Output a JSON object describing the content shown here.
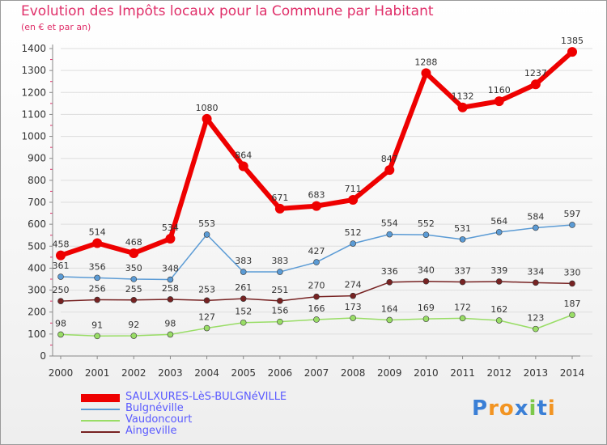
{
  "chart_data": {
    "type": "line",
    "title": "Evolution des Impôts locaux pour la Commune par Habitant",
    "subtitle": "(en € et par an)",
    "xlabel": "",
    "ylabel": "",
    "x": [
      "2000",
      "2001",
      "2002",
      "2003",
      "2004",
      "2005",
      "2006",
      "2007",
      "2008",
      "2009",
      "2010",
      "2011",
      "2012",
      "2013",
      "2014"
    ],
    "ylim": [
      0,
      1400
    ],
    "yticks": [
      0,
      100,
      200,
      300,
      400,
      500,
      600,
      700,
      800,
      900,
      1000,
      1100,
      1200,
      1300,
      1400
    ],
    "grid": true,
    "legend_position": "bottom-left",
    "series": [
      {
        "name": "SAULXURES-LèS-BULGNéVILLE",
        "color": "#ee0000",
        "values": [
          458,
          514,
          468,
          534,
          1080,
          864,
          671,
          683,
          711,
          847,
          1288,
          1132,
          1160,
          1237,
          1385
        ]
      },
      {
        "name": "Bulgnéville",
        "color": "#5b9bd5",
        "values": [
          361,
          356,
          350,
          348,
          553,
          383,
          383,
          427,
          512,
          554,
          552,
          531,
          564,
          584,
          597
        ]
      },
      {
        "name": "Vaudoncourt",
        "color": "#99dd66",
        "values": [
          98,
          91,
          92,
          98,
          127,
          152,
          156,
          166,
          173,
          164,
          169,
          172,
          162,
          123,
          187
        ]
      },
      {
        "name": "Aingeville",
        "color": "#772222",
        "values": [
          250,
          256,
          255,
          258,
          253,
          261,
          251,
          270,
          274,
          336,
          340,
          337,
          339,
          334,
          330
        ]
      }
    ]
  },
  "brand": {
    "letters": [
      "P",
      "r",
      "o",
      "x",
      "i",
      "t",
      "i"
    ],
    "colors": [
      "#3a7fd6",
      "#f29422",
      "#f29422",
      "#3a7fd6",
      "#7cc84a",
      "#3a7fd6",
      "#f29422"
    ]
  }
}
